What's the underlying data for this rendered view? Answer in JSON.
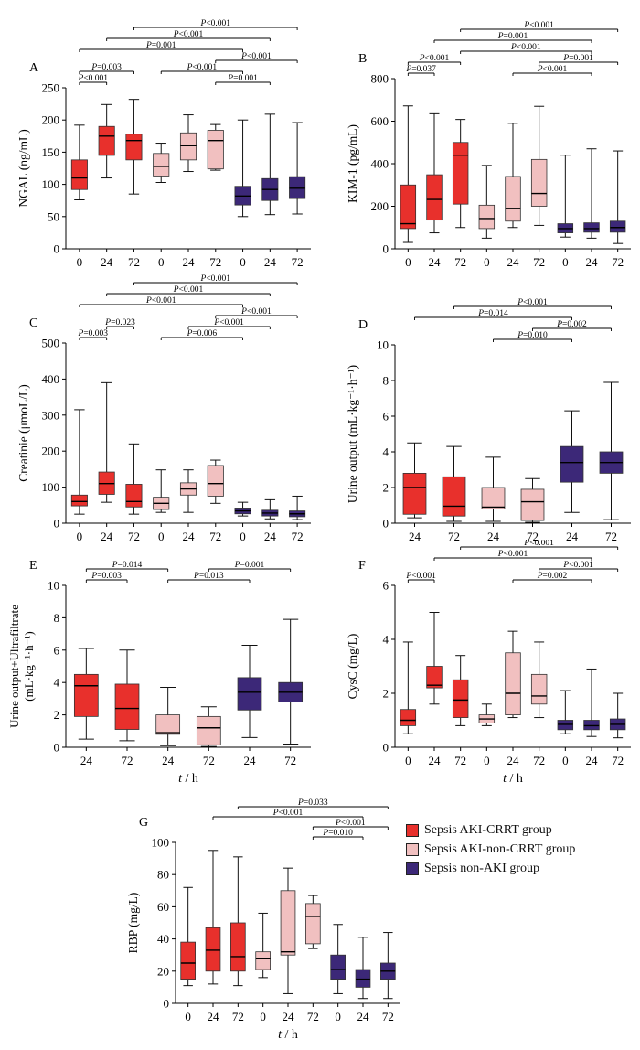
{
  "colors": {
    "crrt": "#e8302c",
    "noncrrt": "#f1c0c0",
    "nonaki": "#3c2878"
  },
  "legend": [
    {
      "label": "Sepsis AKI-CRRT group",
      "color": "#e8302c"
    },
    {
      "label": "Sepsis AKI-non-CRRT group",
      "color": "#f1c0c0"
    },
    {
      "label": "Sepsis non-AKI group",
      "color": "#3c2878"
    }
  ],
  "chart_data": [
    {
      "panel": "A",
      "type": "box",
      "ylabel": "NGAL (ng/mL)",
      "xlabel": "t / h",
      "ylim": [
        0,
        250
      ],
      "yticks": [
        0,
        50,
        100,
        150,
        200,
        250
      ],
      "categories": [
        "0",
        "24",
        "72",
        "0",
        "24",
        "72",
        "0",
        "24",
        "72"
      ],
      "groups": [
        "crrt",
        "crrt",
        "crrt",
        "noncrrt",
        "noncrrt",
        "noncrrt",
        "nonaki",
        "nonaki",
        "nonaki"
      ],
      "boxes": [
        {
          "min": 76,
          "q1": 92,
          "median": 110,
          "q3": 138,
          "max": 192
        },
        {
          "min": 110,
          "q1": 145,
          "median": 175,
          "q3": 190,
          "max": 224
        },
        {
          "min": 85,
          "q1": 138,
          "median": 168,
          "q3": 178,
          "max": 232
        },
        {
          "min": 103,
          "q1": 113,
          "median": 128,
          "q3": 148,
          "max": 164
        },
        {
          "min": 120,
          "q1": 138,
          "median": 160,
          "q3": 180,
          "max": 208
        },
        {
          "min": 122,
          "q1": 124,
          "median": 168,
          "q3": 184,
          "max": 193
        },
        {
          "min": 50,
          "q1": 68,
          "median": 82,
          "q3": 97,
          "max": 200
        },
        {
          "min": 53,
          "q1": 75,
          "median": 92,
          "q3": 109,
          "max": 209
        },
        {
          "min": 54,
          "q1": 78,
          "median": 94,
          "q3": 112,
          "max": 196
        }
      ],
      "comparisons": [
        {
          "from": 0,
          "to": 1,
          "label": "P<0.001"
        },
        {
          "from": 0,
          "to": 2,
          "label": "P=0.003"
        },
        {
          "from": 3,
          "to": 6,
          "label": "P<0.001"
        },
        {
          "from": 5,
          "to": 7,
          "label": "P=0.001"
        },
        {
          "from": 5,
          "to": 8,
          "label": "P<0.001"
        },
        {
          "from": 0,
          "to": 6,
          "label": "P=0.001"
        },
        {
          "from": 1,
          "to": 7,
          "label": "P<0.001"
        },
        {
          "from": 2,
          "to": 8,
          "label": "P<0.001"
        }
      ]
    },
    {
      "panel": "B",
      "type": "box",
      "ylabel": "KIM-1 (pg/mL)",
      "xlabel": "t / h",
      "ylim": [
        0,
        800
      ],
      "yticks": [
        0,
        200,
        400,
        600,
        800
      ],
      "categories": [
        "0",
        "24",
        "72",
        "0",
        "24",
        "72",
        "0",
        "24",
        "72"
      ],
      "groups": [
        "crrt",
        "crrt",
        "crrt",
        "noncrrt",
        "noncrrt",
        "noncrrt",
        "nonaki",
        "nonaki",
        "nonaki"
      ],
      "boxes": [
        {
          "min": 30,
          "q1": 95,
          "median": 118,
          "q3": 300,
          "max": 672
        },
        {
          "min": 75,
          "q1": 135,
          "median": 232,
          "q3": 348,
          "max": 635
        },
        {
          "min": 100,
          "q1": 210,
          "median": 440,
          "q3": 500,
          "max": 608
        },
        {
          "min": 50,
          "q1": 95,
          "median": 142,
          "q3": 205,
          "max": 392
        },
        {
          "min": 100,
          "q1": 130,
          "median": 190,
          "q3": 340,
          "max": 590
        },
        {
          "min": 110,
          "q1": 200,
          "median": 260,
          "q3": 420,
          "max": 670
        },
        {
          "min": 55,
          "q1": 75,
          "median": 95,
          "q3": 118,
          "max": 440
        },
        {
          "min": 50,
          "q1": 78,
          "median": 95,
          "q3": 122,
          "max": 470
        },
        {
          "min": 25,
          "q1": 78,
          "median": 100,
          "q3": 130,
          "max": 460
        }
      ],
      "comparisons": [
        {
          "from": 0,
          "to": 1,
          "label": "P=0.037"
        },
        {
          "from": 0,
          "to": 2,
          "label": "P<0.001"
        },
        {
          "from": 4,
          "to": 7,
          "label": "P<0.001"
        },
        {
          "from": 5,
          "to": 8,
          "label": "P=0.001"
        },
        {
          "from": 1,
          "to": 7,
          "label": "P=0.001"
        },
        {
          "from": 2,
          "to": 7,
          "label": "P<0.001"
        },
        {
          "from": 2,
          "to": 8,
          "label": "P<0.001"
        }
      ]
    },
    {
      "panel": "C",
      "type": "box",
      "ylabel": "Creatinie (μmoL/L)",
      "xlabel": "t / h",
      "ylim": [
        0,
        500
      ],
      "yticks": [
        0,
        100,
        200,
        300,
        400,
        500
      ],
      "categories": [
        "0",
        "24",
        "72",
        "0",
        "24",
        "72",
        "0",
        "24",
        "72"
      ],
      "groups": [
        "crrt",
        "crrt",
        "crrt",
        "noncrrt",
        "noncrrt",
        "noncrrt",
        "nonaki",
        "nonaki",
        "nonaki"
      ],
      "boxes": [
        {
          "min": 25,
          "q1": 48,
          "median": 60,
          "q3": 78,
          "max": 315
        },
        {
          "min": 58,
          "q1": 80,
          "median": 110,
          "q3": 142,
          "max": 390
        },
        {
          "min": 25,
          "q1": 45,
          "median": 60,
          "q3": 108,
          "max": 220
        },
        {
          "min": 30,
          "q1": 38,
          "median": 55,
          "q3": 72,
          "max": 148
        },
        {
          "min": 30,
          "q1": 78,
          "median": 95,
          "q3": 112,
          "max": 148
        },
        {
          "min": 55,
          "q1": 75,
          "median": 110,
          "q3": 160,
          "max": 175
        },
        {
          "min": 20,
          "q1": 26,
          "median": 34,
          "q3": 42,
          "max": 58
        },
        {
          "min": 12,
          "q1": 20,
          "median": 28,
          "q3": 36,
          "max": 65
        },
        {
          "min": 10,
          "q1": 18,
          "median": 26,
          "q3": 34,
          "max": 75
        }
      ],
      "comparisons": [
        {
          "from": 0,
          "to": 1,
          "label": "P=0.003"
        },
        {
          "from": 1,
          "to": 2,
          "label": "P=0.023"
        },
        {
          "from": 3,
          "to": 6,
          "label": "P=0.006"
        },
        {
          "from": 4,
          "to": 7,
          "label": "P<0.001"
        },
        {
          "from": 5,
          "to": 8,
          "label": "P<0.001"
        },
        {
          "from": 0,
          "to": 6,
          "label": "P<0.001"
        },
        {
          "from": 1,
          "to": 7,
          "label": "P<0.001"
        },
        {
          "from": 2,
          "to": 8,
          "label": "P<0.001"
        }
      ]
    },
    {
      "panel": "D",
      "type": "box",
      "ylabel": "Urine output  (mL·kg⁻¹·h⁻¹)",
      "xlabel": "t / h",
      "ylim": [
        0,
        10
      ],
      "yticks": [
        0,
        2,
        4,
        6,
        8,
        10
      ],
      "categories": [
        "24",
        "72",
        "24",
        "72",
        "24",
        "72"
      ],
      "groups": [
        "crrt",
        "crrt",
        "noncrrt",
        "noncrrt",
        "nonaki",
        "nonaki"
      ],
      "boxes": [
        {
          "min": 0.3,
          "q1": 0.5,
          "median": 2.0,
          "q3": 2.8,
          "max": 4.5
        },
        {
          "min": 0.1,
          "q1": 0.4,
          "median": 0.95,
          "q3": 2.6,
          "max": 4.3
        },
        {
          "min": 0.1,
          "q1": 0.8,
          "median": 0.9,
          "q3": 2.0,
          "max": 3.7
        },
        {
          "min": 0.05,
          "q1": 0.15,
          "median": 1.2,
          "q3": 1.9,
          "max": 2.5
        },
        {
          "min": 0.6,
          "q1": 2.3,
          "median": 3.4,
          "q3": 4.3,
          "max": 6.3
        },
        {
          "min": 0.2,
          "q1": 2.8,
          "median": 3.4,
          "q3": 4.0,
          "max": 7.9
        }
      ],
      "comparisons": [
        {
          "from": 2,
          "to": 4,
          "label": "P=0.010"
        },
        {
          "from": 3,
          "to": 5,
          "label": "P=0.002"
        },
        {
          "from": 0,
          "to": 4,
          "label": "P=0.014"
        },
        {
          "from": 1,
          "to": 5,
          "label": "P<0.001"
        }
      ]
    },
    {
      "panel": "E",
      "type": "box",
      "ylabel": "Urine output+Ultrafiltrate (mL·kg⁻¹·h⁻¹)",
      "xlabel": "t / h",
      "ylim": [
        0,
        10
      ],
      "yticks": [
        0,
        2,
        4,
        6,
        8,
        10
      ],
      "categories": [
        "24",
        "72",
        "24",
        "72",
        "24",
        "72"
      ],
      "groups": [
        "crrt",
        "crrt",
        "noncrrt",
        "noncrrt",
        "nonaki",
        "nonaki"
      ],
      "boxes": [
        {
          "min": 0.5,
          "q1": 1.9,
          "median": 3.8,
          "q3": 4.5,
          "max": 6.1
        },
        {
          "min": 0.4,
          "q1": 1.1,
          "median": 2.4,
          "q3": 3.9,
          "max": 6.0
        },
        {
          "min": 0.1,
          "q1": 0.8,
          "median": 0.9,
          "q3": 2.0,
          "max": 3.7
        },
        {
          "min": 0.05,
          "q1": 0.15,
          "median": 1.2,
          "q3": 1.9,
          "max": 2.5
        },
        {
          "min": 0.6,
          "q1": 2.3,
          "median": 3.4,
          "q3": 4.3,
          "max": 6.3
        },
        {
          "min": 0.2,
          "q1": 2.8,
          "median": 3.4,
          "q3": 4.0,
          "max": 7.9
        }
      ],
      "comparisons": [
        {
          "from": 0,
          "to": 1,
          "label": "P=0.003"
        },
        {
          "from": 2,
          "to": 4,
          "label": "P=0.013"
        },
        {
          "from": 3,
          "to": 5,
          "label": "P=0.001"
        },
        {
          "from": 0,
          "to": 2,
          "label": "P=0.014"
        }
      ]
    },
    {
      "panel": "F",
      "type": "box",
      "ylabel": "CysC (mg/L)",
      "xlabel": "t / h",
      "ylim": [
        0,
        6
      ],
      "yticks": [
        0,
        2,
        4,
        6
      ],
      "categories": [
        "0",
        "24",
        "72",
        "0",
        "24",
        "72",
        "0",
        "24",
        "72"
      ],
      "groups": [
        "crrt",
        "crrt",
        "crrt",
        "noncrrt",
        "noncrrt",
        "noncrrt",
        "nonaki",
        "nonaki",
        "nonaki"
      ],
      "boxes": [
        {
          "min": 0.5,
          "q1": 0.8,
          "median": 1.0,
          "q3": 1.4,
          "max": 3.9
        },
        {
          "min": 1.6,
          "q1": 2.2,
          "median": 2.3,
          "q3": 3.0,
          "max": 5.0
        },
        {
          "min": 0.8,
          "q1": 1.1,
          "median": 1.75,
          "q3": 2.5,
          "max": 3.4
        },
        {
          "min": 0.8,
          "q1": 0.9,
          "median": 1.05,
          "q3": 1.2,
          "max": 1.6
        },
        {
          "min": 1.1,
          "q1": 1.2,
          "median": 2.0,
          "q3": 3.5,
          "max": 4.3
        },
        {
          "min": 1.1,
          "q1": 1.6,
          "median": 1.9,
          "q3": 2.7,
          "max": 3.9
        },
        {
          "min": 0.5,
          "q1": 0.65,
          "median": 0.85,
          "q3": 1.0,
          "max": 2.1
        },
        {
          "min": 0.4,
          "q1": 0.65,
          "median": 0.8,
          "q3": 1.0,
          "max": 2.9
        },
        {
          "min": 0.35,
          "q1": 0.65,
          "median": 0.85,
          "q3": 1.05,
          "max": 2.0
        }
      ],
      "comparisons": [
        {
          "from": 0,
          "to": 1,
          "label": "P<0.001"
        },
        {
          "from": 4,
          "to": 7,
          "label": "P=0.002"
        },
        {
          "from": 5,
          "to": 8,
          "label": "P<0.001"
        },
        {
          "from": 1,
          "to": 7,
          "label": "P<0.001"
        },
        {
          "from": 2,
          "to": 8,
          "label": "P<0.001"
        }
      ]
    },
    {
      "panel": "G",
      "type": "box",
      "ylabel": "RBP (mg/L)",
      "xlabel": "t / h",
      "ylim": [
        0,
        100
      ],
      "yticks": [
        0,
        20,
        40,
        60,
        80,
        100
      ],
      "categories": [
        "0",
        "24",
        "72",
        "0",
        "24",
        "72",
        "0",
        "24",
        "72"
      ],
      "groups": [
        "crrt",
        "crrt",
        "crrt",
        "noncrrt",
        "noncrrt",
        "noncrrt",
        "nonaki",
        "nonaki",
        "nonaki"
      ],
      "boxes": [
        {
          "min": 11,
          "q1": 15,
          "median": 25,
          "q3": 38,
          "max": 72
        },
        {
          "min": 12,
          "q1": 20,
          "median": 33,
          "q3": 47,
          "max": 95
        },
        {
          "min": 11,
          "q1": 20,
          "median": 29,
          "q3": 50,
          "max": 91
        },
        {
          "min": 16,
          "q1": 21,
          "median": 28,
          "q3": 32,
          "max": 56
        },
        {
          "min": 6,
          "q1": 30,
          "median": 32,
          "q3": 70,
          "max": 84
        },
        {
          "min": 34,
          "q1": 37,
          "median": 54,
          "q3": 62,
          "max": 67
        },
        {
          "min": 6,
          "q1": 15,
          "median": 21,
          "q3": 30,
          "max": 49
        },
        {
          "min": 3,
          "q1": 10,
          "median": 15,
          "q3": 21,
          "max": 41
        },
        {
          "min": 3,
          "q1": 15,
          "median": 20,
          "q3": 25,
          "max": 44
        }
      ],
      "comparisons": [
        {
          "from": 5,
          "to": 7,
          "label": "P=0.010"
        },
        {
          "from": 5,
          "to": 8,
          "label": "P<0.001"
        },
        {
          "from": 1,
          "to": 7,
          "label": "P<0.001"
        },
        {
          "from": 2,
          "to": 8,
          "label": "P=0.033"
        }
      ]
    }
  ]
}
